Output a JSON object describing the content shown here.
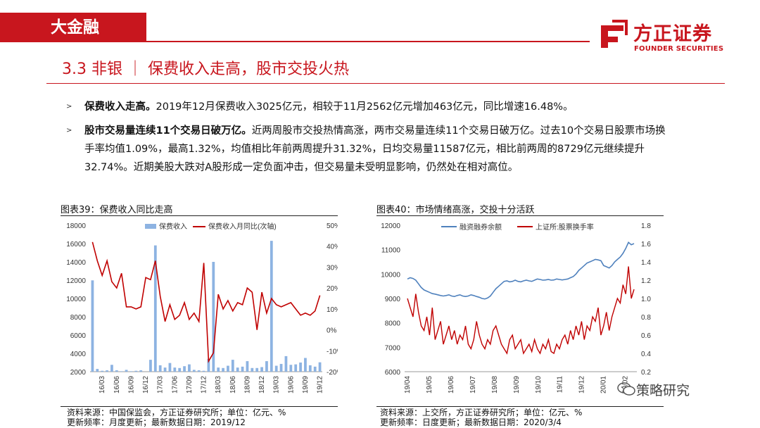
{
  "header": {
    "brand_tag": "大金融",
    "logo_cn": "方正证券",
    "logo_en": "FOUNDER SECURITIES",
    "accent_color": "#c8161e"
  },
  "section": {
    "title": "3.3 非银 ｜ 保费收入走高，股市交投火热"
  },
  "bullets": [
    {
      "bold": "保费收入走高。",
      "text": "2019年12月保费收入3025亿元，相较于11月2562亿元增加463亿元，同比增速16.48%。"
    },
    {
      "bold": "股市交易量连续11个交易日破万亿。",
      "text": "近两周股市交投热情高涨，两市交易量连续11个交易日破万亿。过去10个交易日股票市场换手率均值1.09%，最高1.32%，均值相比年前两周提升31.32%，日均交易量11587亿元，相比前两周的8729亿元继续提升32.74%。近期美股大跌对A股形成一定负面冲击，但交易量未受明显影响，仍然处在相对高位。"
    }
  ],
  "chart_data": [
    {
      "id": "chart39",
      "label": "图表39：保费收入同比走高",
      "type": "bar+line",
      "legend": [
        "保费收入",
        "保费收入月同比(次轴)"
      ],
      "colors": {
        "bar": "#8db3e2",
        "line": "#c00000"
      },
      "y_ticks": [
        "18000",
        "16000",
        "14000",
        "12000",
        "10000",
        "8000",
        "6000",
        "4000",
        "2000"
      ],
      "y2_ticks": [
        "50%",
        "40%",
        "30%",
        "20%",
        "10%",
        "0%",
        "-10%",
        "-20%"
      ],
      "x_ticks": [
        "16/03",
        "16/06",
        "16/09",
        "16/12",
        "17/03",
        "17/06",
        "17/09",
        "17/12",
        "18/03",
        "18/06",
        "18/09",
        "18/12",
        "19/03",
        "19/06",
        "19/09",
        "19/12"
      ],
      "ylim": [
        2000,
        18000
      ],
      "y2lim": [
        -20,
        50
      ],
      "x_start": "2016/01",
      "bars": [
        11980,
        2300,
        2100,
        2150,
        2750,
        2150,
        2050,
        2200,
        2050,
        2100,
        2150,
        2000,
        3300,
        15800,
        2700,
        2450,
        2950,
        2450,
        2400,
        2600,
        2800,
        2200,
        2150,
        2100,
        3400,
        14000,
        2450,
        2400,
        2650,
        3300,
        2450,
        2550,
        3150,
        2400,
        2400,
        2500,
        3150,
        16300,
        2650,
        2850,
        3700,
        2750,
        2800,
        3000,
        3500,
        2700,
        2550,
        3025
      ],
      "yoy": [
        42,
        33,
        26,
        33,
        23,
        20,
        27,
        11,
        11,
        10,
        11,
        25,
        24,
        33,
        16,
        4,
        12,
        5,
        7,
        13,
        5,
        8,
        4,
        32,
        -15,
        -11,
        17,
        10,
        14,
        9,
        13,
        12,
        20,
        18,
        0,
        18,
        8,
        15,
        12,
        11,
        12,
        13,
        10,
        7,
        8,
        7,
        9,
        16.48
      ]
    },
    {
      "id": "chart40",
      "label": "图表40：市场情绪高涨，交投十分活跃",
      "type": "line",
      "legend": [
        "融资融券余额",
        "上证所:股票换手率"
      ],
      "colors": {
        "margin": "#4f81bd",
        "turnover": "#c00000"
      },
      "y_ticks": [
        "12000",
        "11000",
        "10000",
        "9000",
        "8000",
        "7000",
        "6000"
      ],
      "y2_ticks": [
        "1.8",
        "1.6",
        "1.4",
        "1.2",
        "1.0",
        "0.8",
        "0.6",
        "0.4",
        "0.2"
      ],
      "x_ticks": [
        "19/04",
        "19/05",
        "19/06",
        "19/07",
        "19/08",
        "19/09",
        "19/10",
        "19/11",
        "19/12",
        "20/01",
        "20/02"
      ],
      "ylim": [
        6000,
        12000
      ],
      "y2lim": [
        0.2,
        1.8
      ],
      "margin_balance": [
        9800,
        9850,
        9820,
        9750,
        9600,
        9450,
        9350,
        9300,
        9250,
        9200,
        9180,
        9150,
        9120,
        9100,
        9120,
        9150,
        9100,
        9080,
        9120,
        9150,
        9100,
        9080,
        9100,
        9150,
        9120,
        9080,
        9050,
        9000,
        8980,
        9020,
        9100,
        9250,
        9400,
        9500,
        9600,
        9700,
        9720,
        9680,
        9700,
        9750,
        9700,
        9680,
        9720,
        9750,
        9720,
        9700,
        9750,
        9800,
        9780,
        9750,
        9760,
        9780,
        9750,
        9760,
        9800,
        9780,
        9760,
        9780,
        9800,
        9850,
        9900,
        10000,
        10150,
        10250,
        10350,
        10450,
        10500,
        10550,
        10600,
        10580,
        10550,
        10350,
        10300,
        10250,
        10350,
        10500,
        10600,
        10700,
        10850,
        11050,
        11300,
        11200,
        11250
      ],
      "turnover": [
        1.0,
        0.9,
        0.8,
        1.05,
        0.85,
        0.7,
        0.65,
        0.8,
        0.6,
        0.9,
        0.55,
        0.65,
        0.75,
        0.5,
        0.6,
        0.7,
        0.55,
        0.65,
        0.5,
        0.6,
        0.55,
        0.7,
        0.5,
        0.45,
        0.55,
        0.75,
        0.6,
        0.5,
        0.45,
        0.55,
        0.5,
        0.65,
        0.7,
        0.6,
        0.5,
        0.45,
        0.4,
        0.55,
        0.6,
        0.45,
        0.5,
        0.55,
        0.4,
        0.45,
        0.5,
        0.42,
        0.55,
        0.45,
        0.4,
        0.5,
        0.45,
        0.55,
        0.42,
        0.4,
        0.5,
        0.45,
        0.55,
        0.6,
        0.5,
        0.65,
        0.55,
        0.7,
        0.6,
        0.75,
        0.55,
        0.7,
        0.65,
        0.8,
        0.75,
        0.9,
        0.6,
        0.7,
        0.85,
        0.65,
        0.8,
        0.9,
        1.0,
        0.95,
        1.15,
        1.05,
        1.35,
        1.0,
        1.1
      ]
    }
  ],
  "sources": {
    "chart39": "资料来源：中国保监会，方正证券研究所；单位：亿元、%\n更新频率：月度更新；最新数据日期：2019/12",
    "chart40": "资料来源：上交所，方正证券研究所；单位：亿元、%\n更新频率：日度更新；最新数据日期：2020/3/4"
  },
  "watermark": "策略研究"
}
